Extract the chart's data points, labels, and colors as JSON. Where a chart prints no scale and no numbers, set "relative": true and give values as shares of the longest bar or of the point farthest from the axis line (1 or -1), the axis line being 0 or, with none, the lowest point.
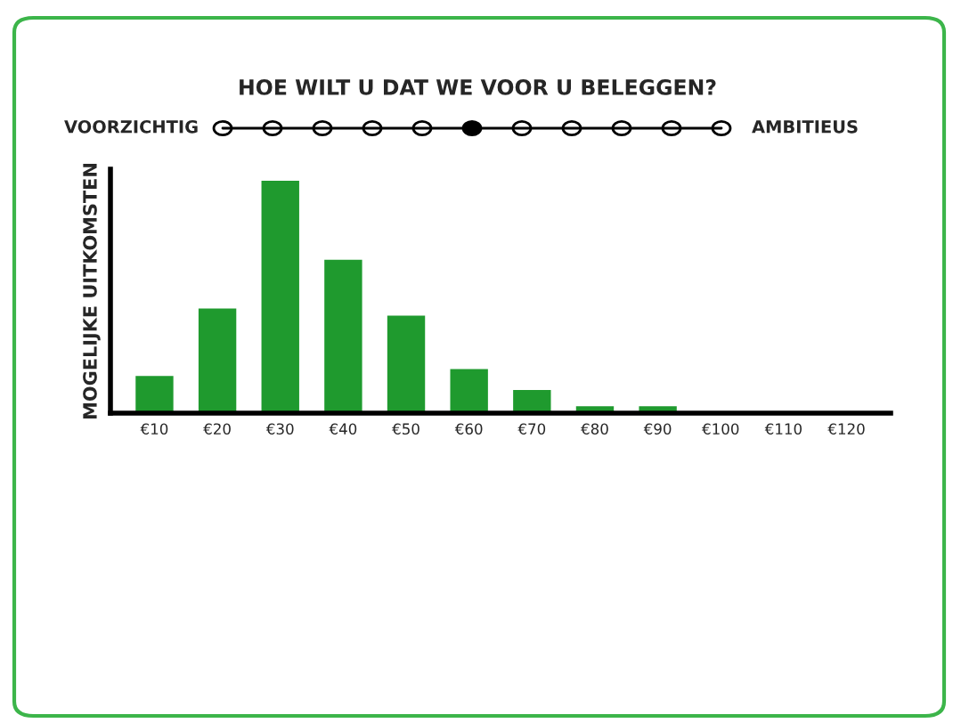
{
  "chart_data": {
    "type": "bar",
    "title": "HOE WILT U DAT WE VOOR U BELEGGEN?",
    "ylabel": "MOGELIJKE UITKOMSTEN",
    "annotations": [
      "VOORZICHTIG",
      "AMBITIEUS"
    ],
    "categories": [
      "€10",
      "€20",
      "€30",
      "€40",
      "€50",
      "€60",
      "€70",
      "€80",
      "€90",
      "€100",
      "€110",
      "€120"
    ],
    "values": [
      0.16,
      0.45,
      1,
      0.66,
      0.42,
      0.19,
      0.1,
      0.03,
      0.03,
      0,
      0,
      0
    ],
    "color": "#1f9a2e",
    "relative": true,
    "grid": false,
    "legend": false
  }
}
